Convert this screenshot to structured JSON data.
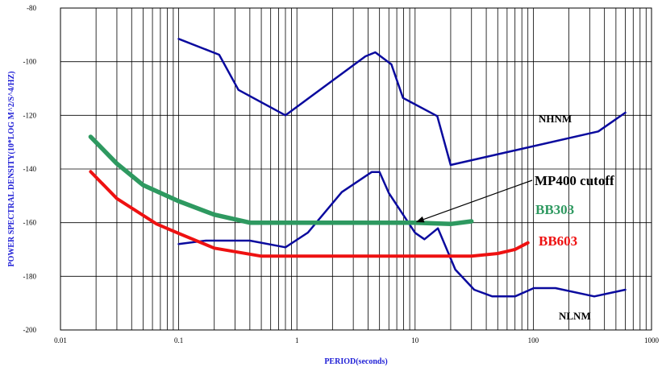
{
  "chart_data": {
    "type": "line",
    "title": "",
    "xlabel": "PERIOD(seconds)",
    "ylabel": "POWER SPECTRAL DENSITY(10*LOG M^2/S^4/HZ)",
    "xscale": "log",
    "xlim": [
      0.01,
      1000
    ],
    "ylim": [
      -200,
      -80
    ],
    "grid": true,
    "x_ticks": [
      "0.01",
      "0.1",
      "1",
      "10",
      "100",
      "1000"
    ],
    "y_ticks": [
      "-80",
      "-100",
      "-120",
      "-140",
      "-160",
      "-180",
      "-200"
    ],
    "series": [
      {
        "name": "NHNM",
        "color": "#0a0a9e",
        "x": [
          0.1,
          0.22,
          0.32,
          0.8,
          3.8,
          4.6,
          6.3,
          7.9,
          15.4,
          20,
          354.8,
          600
        ],
        "y": [
          -91.5,
          -97.4,
          -110.5,
          -120.0,
          -98.0,
          -96.5,
          -101.0,
          -113.5,
          -120.3,
          -138.5,
          -126.0,
          -119.0
        ]
      },
      {
        "name": "NLNM",
        "color": "#0a0a9e",
        "x": [
          0.1,
          0.17,
          0.4,
          0.8,
          1.24,
          2.4,
          4.3,
          5.0,
          6.0,
          10.0,
          12.0,
          15.6,
          21.9,
          31.6,
          45,
          70,
          101,
          154,
          328,
          600
        ],
        "y": [
          -168.0,
          -166.7,
          -166.7,
          -169.2,
          -163.7,
          -148.6,
          -141.1,
          -141.1,
          -149.0,
          -163.8,
          -166.2,
          -162.1,
          -177.5,
          -185.0,
          -187.5,
          -187.5,
          -184.4,
          -184.4,
          -187.5,
          -185.0
        ]
      },
      {
        "name": "BB303",
        "color": "#2e9960",
        "x": [
          0.018,
          0.03,
          0.05,
          0.1,
          0.2,
          0.4,
          1,
          10,
          20,
          30
        ],
        "y": [
          -128,
          -138,
          -146,
          -152,
          -157,
          -160,
          -160,
          -160,
          -160.5,
          -159.5
        ]
      },
      {
        "name": "BB603",
        "color": "#ee1111",
        "x": [
          0.018,
          0.03,
          0.065,
          0.1,
          0.2,
          0.5,
          1,
          10,
          30,
          50,
          70,
          90
        ],
        "y": [
          -141,
          -151,
          -160.5,
          -164,
          -169.5,
          -172.5,
          -172.5,
          -172.5,
          -172.5,
          -171.5,
          -170,
          -167.5
        ]
      }
    ],
    "annotations": [
      {
        "text": "NHNM",
        "color": "#000000"
      },
      {
        "text": "NLNM",
        "color": "#000000"
      },
      {
        "text": "MP400 cutoff",
        "color": "#000000",
        "arrow_to": {
          "x": 10,
          "y": -160
        }
      },
      {
        "text": "BB303",
        "color": "#2e9960"
      },
      {
        "text": "BB603",
        "color": "#ee1111"
      }
    ]
  }
}
